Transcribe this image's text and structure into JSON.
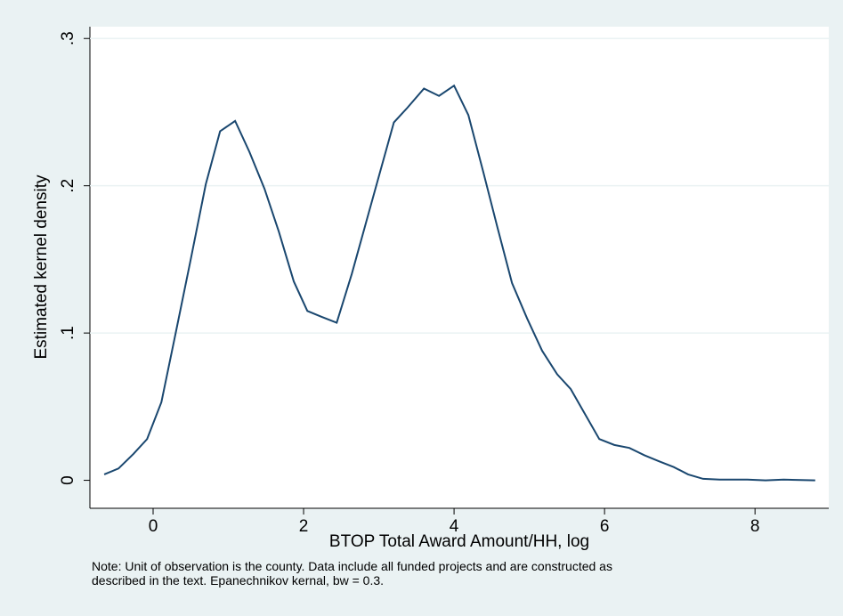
{
  "chart_data": {
    "type": "line",
    "xlabel": "BTOP Total Award Amount/HH, log",
    "ylabel": "Estimated kernel density",
    "note": [
      "Note: Unit of observation is the county. Data include all funded projects and are constructed as",
      "described in the text.  Epanechnikov kernal, bw = 0.3."
    ],
    "x": [
      -0.65,
      -0.46,
      -0.26,
      -0.08,
      0.11,
      0.3,
      0.5,
      0.7,
      0.89,
      1.09,
      1.28,
      1.48,
      1.67,
      1.87,
      2.05,
      2.24,
      2.44,
      2.64,
      2.83,
      3.02,
      3.2,
      3.38,
      3.6,
      3.8,
      4.0,
      4.19,
      4.39,
      4.58,
      4.77,
      4.97,
      5.17,
      5.37,
      5.55,
      5.74,
      5.93,
      6.13,
      6.33,
      6.53,
      6.72,
      6.92,
      7.11,
      7.31,
      7.53,
      7.9,
      8.14,
      8.38,
      8.8
    ],
    "series": [
      {
        "color": "#1a476f",
        "values": [
          0.004,
          0.008,
          0.018,
          0.028,
          0.053,
          0.1,
          0.15,
          0.201,
          0.237,
          0.244,
          0.223,
          0.198,
          0.169,
          0.135,
          0.115,
          0.111,
          0.107,
          0.14,
          0.175,
          0.21,
          0.243,
          0.253,
          0.266,
          0.261,
          0.268,
          0.248,
          0.209,
          0.171,
          0.134,
          0.11,
          0.088,
          0.072,
          0.062,
          0.045,
          0.028,
          0.024,
          0.022,
          0.017,
          0.013,
          0.009,
          0.004,
          0.001,
          0.0005,
          0.0005,
          0,
          0.0005,
          0
        ]
      }
    ],
    "xlim": [
      -0.84,
      8.98
    ],
    "ylim": [
      -0.019,
      0.308
    ],
    "xticks": [
      0,
      2,
      4,
      6,
      8
    ],
    "yticks": [
      0,
      {
        "value": 0.1,
        "label": ".1"
      },
      {
        "value": 0.2,
        "label": ".2"
      },
      {
        "value": 0.3,
        "label": ".3"
      }
    ],
    "grid": true
  }
}
